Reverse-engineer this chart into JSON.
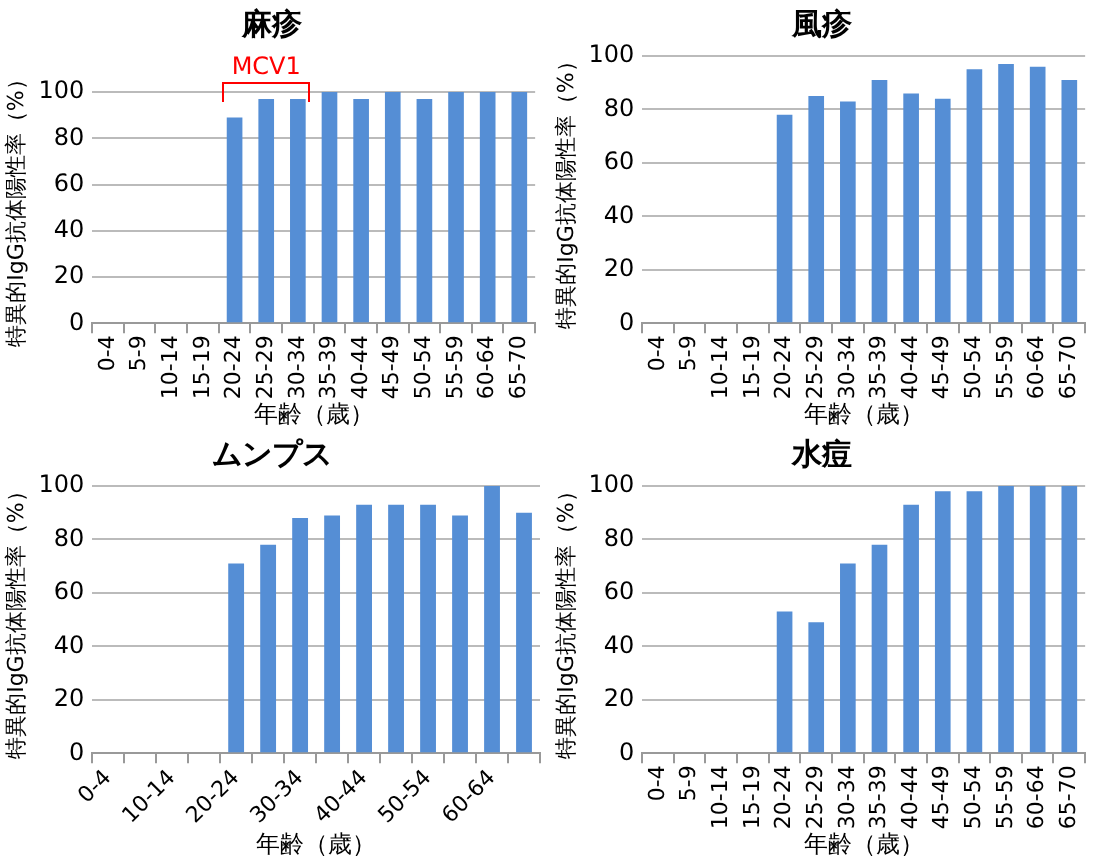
{
  "chart_data": [
    {
      "type": "bar",
      "title": "麻疹",
      "xlabel": "年齢（歳）",
      "ylabel": "特異的IgG抗体陽性率（%）",
      "categories": [
        "0-4",
        "5-9",
        "10-14",
        "15-19",
        "20-24",
        "25-29",
        "30-34",
        "35-39",
        "40-44",
        "45-49",
        "50-54",
        "55-59",
        "60-64",
        "65-70"
      ],
      "values": [
        null,
        null,
        null,
        null,
        89,
        97,
        97,
        100,
        97,
        100,
        97,
        100,
        100,
        100
      ],
      "color": "#558ed5",
      "ylim": [
        0,
        100
      ],
      "yticks": [
        0,
        20,
        40,
        60,
        80,
        100
      ],
      "grid": "y",
      "legend": false,
      "annotations": [
        {
          "text": "MCV1",
          "x": "25-29",
          "y": 100
        }
      ]
    },
    {
      "type": "bar",
      "title": "風疹",
      "xlabel": "年齢（歳）",
      "ylabel": "特異的IgG抗体陽性率（%）",
      "categories": [
        "0-4",
        "5-9",
        "10-14",
        "15-19",
        "20-24",
        "25-29",
        "30-34",
        "35-39",
        "40-44",
        "45-49",
        "50-54",
        "55-59",
        "60-64",
        "65-70"
      ],
      "values": [
        null,
        null,
        null,
        null,
        78,
        85,
        83,
        91,
        86,
        84,
        95,
        97,
        96,
        91
      ],
      "color": "#558ed5",
      "ylim": [
        0,
        100
      ],
      "yticks": [
        0,
        20,
        40,
        60,
        80,
        100
      ],
      "grid": "y",
      "legend": false
    },
    {
      "type": "bar",
      "title": "ムンプス",
      "xlabel": "年齢（歳）",
      "ylabel": "特異的IgG抗体陽性率（%）",
      "categories": [
        "0-4",
        null,
        "10-14",
        null,
        "20-24",
        null,
        "30-34",
        null,
        "40-44",
        null,
        "50-54",
        null,
        "60-64",
        null
      ],
      "values": [
        null,
        null,
        null,
        null,
        71,
        78,
        88,
        89,
        93,
        93,
        93,
        89,
        100,
        90
      ],
      "color": "#558ed5",
      "ylim": [
        0,
        100
      ],
      "yticks": [
        0,
        20,
        40,
        60,
        80,
        100
      ],
      "grid": "y",
      "legend": false
    },
    {
      "type": "bar",
      "title": "水痘",
      "xlabel": "年齢（歳）",
      "ylabel": "特異的IgG抗体陽性率（%）",
      "categories": [
        "0-4",
        "5-9",
        "10-14",
        "15-19",
        "20-24",
        "25-29",
        "30-34",
        "35-39",
        "40-44",
        "45-49",
        "50-54",
        "55-59",
        "60-64",
        "65-70"
      ],
      "values": [
        null,
        null,
        null,
        null,
        53,
        49,
        71,
        78,
        93,
        98,
        98,
        100,
        100,
        100
      ],
      "color": "#558ed5",
      "ylim": [
        0,
        100
      ],
      "yticks": [
        0,
        20,
        40,
        60,
        80,
        100
      ],
      "grid": "y",
      "legend": false
    }
  ]
}
